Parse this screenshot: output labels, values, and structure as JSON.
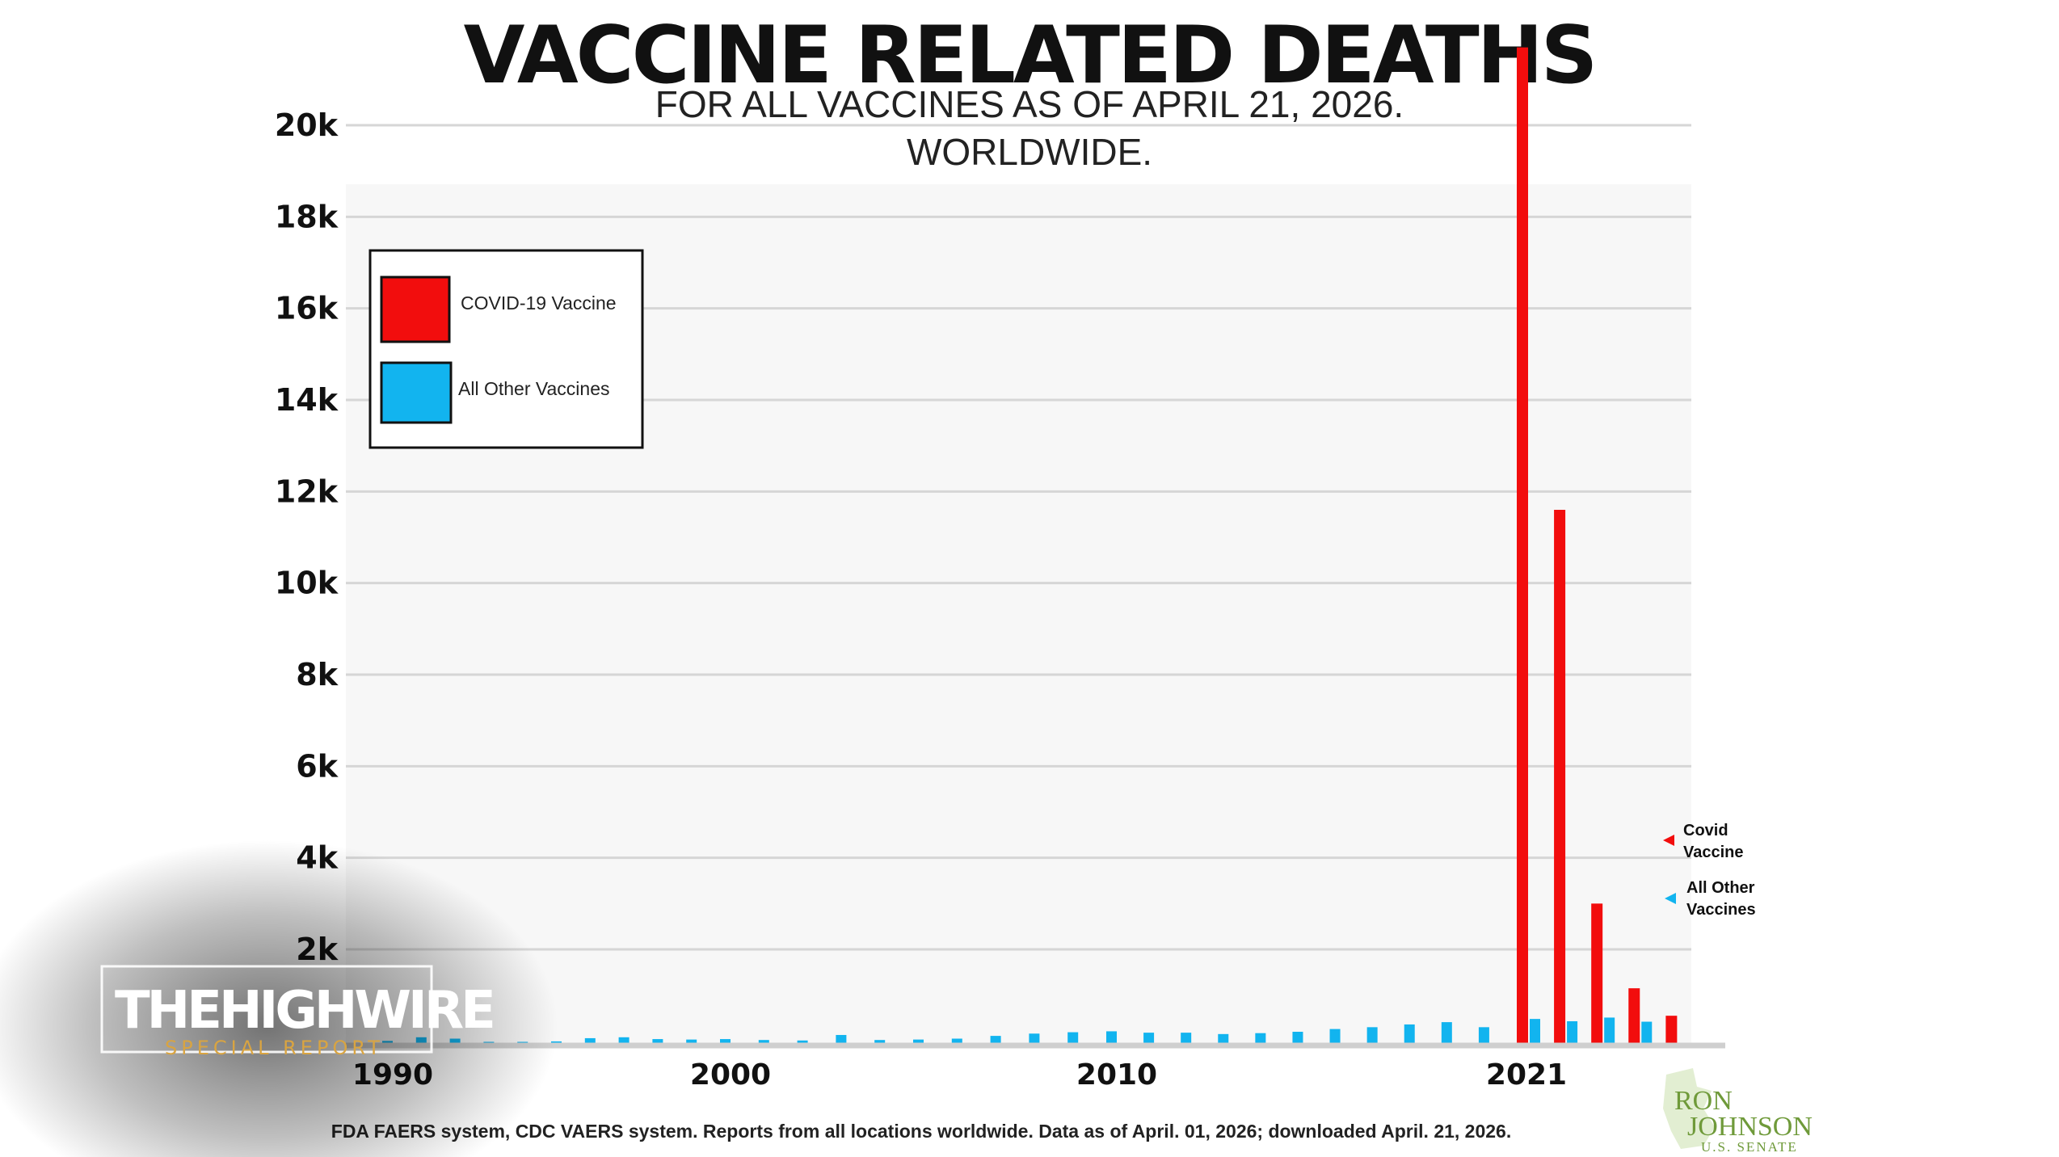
{
  "colors": {
    "covid": "#f20d0d",
    "other": "#12b4ef",
    "grid": "#d6d6d6",
    "plot_bg": "#f7f7f7",
    "brand_gold": "#d9a441",
    "logo_green": "#6f9a3a"
  },
  "chart_data": {
    "type": "bar",
    "title": "VACCINE RELATED DEATHS",
    "subtitle_line1": "FOR ALL VACCINES AS OF APRIL 21, 2026.",
    "subtitle_line2": "WORLDWIDE.",
    "ylim": [
      0,
      21000
    ],
    "grid": true,
    "legend_position": "top-left",
    "y_ticks": [
      {
        "value": 2000,
        "label": "2k"
      },
      {
        "value": 4000,
        "label": "4k"
      },
      {
        "value": 6000,
        "label": "6k"
      },
      {
        "value": 8000,
        "label": "8k"
      },
      {
        "value": 10000,
        "label": "10k"
      },
      {
        "value": 12000,
        "label": "12k"
      },
      {
        "value": 14000,
        "label": "14k"
      },
      {
        "value": 16000,
        "label": "16k"
      },
      {
        "value": 18000,
        "label": "18k"
      },
      {
        "value": 20000,
        "label": "20k"
      }
    ],
    "x_ticks": [
      {
        "value": 1990,
        "label": "1990"
      },
      {
        "value": 2000,
        "label": "2000"
      },
      {
        "value": 2010,
        "label": "2010"
      },
      {
        "value": 2021,
        "label": "2021"
      }
    ],
    "x": [
      1990,
      1991,
      1992,
      1993,
      1994,
      1995,
      1996,
      1997,
      1998,
      1999,
      2000,
      2001,
      2002,
      2003,
      2004,
      2005,
      2006,
      2007,
      2008,
      2009,
      2010,
      2011,
      2012,
      2013,
      2014,
      2015,
      2016,
      2017,
      2018,
      2019,
      2020,
      2021,
      2022,
      2023,
      2024,
      2025,
      2026
    ],
    "series": [
      {
        "name": "COVID-19 Vaccine",
        "key": "covid",
        "values": [
          0,
          0,
          0,
          0,
          0,
          0,
          0,
          0,
          0,
          0,
          0,
          0,
          0,
          0,
          0,
          0,
          0,
          0,
          0,
          0,
          0,
          0,
          0,
          0,
          0,
          0,
          0,
          0,
          0,
          0,
          0,
          21800,
          11700,
          3100,
          1250,
          650,
          60
        ]
      },
      {
        "name": "All Other Vaccines",
        "key": "other",
        "values": [
          100,
          180,
          150,
          80,
          80,
          90,
          160,
          180,
          140,
          130,
          140,
          120,
          110,
          230,
          120,
          130,
          150,
          210,
          260,
          290,
          310,
          280,
          280,
          250,
          270,
          300,
          360,
          400,
          460,
          510,
          400,
          580,
          530,
          610,
          520,
          0,
          0
        ]
      }
    ],
    "legend": [
      {
        "label": "COVID-19 Vaccine",
        "color_key": "covid"
      },
      {
        "label": "All Other Vaccines",
        "color_key": "other"
      }
    ],
    "side_labels": [
      {
        "line1": "Covid",
        "line2": "Vaccine",
        "color_key": "covid"
      },
      {
        "line1": "All Other",
        "line2": "Vaccines",
        "color_key": "other"
      }
    ],
    "footnote": "FDA FAERS system, CDC VAERS system. Reports from all locations worldwide. Data as of April. 01, 2026; downloaded April. 21, 2026."
  },
  "overlay": {
    "brand_the": "THE",
    "brand_highwire": "HIGHWIRE",
    "brand_sub": "SPECIAL REPORT",
    "logo_line1": "RON",
    "logo_line2": "JOHNSON",
    "logo_line3": "U.S. SENATE"
  }
}
